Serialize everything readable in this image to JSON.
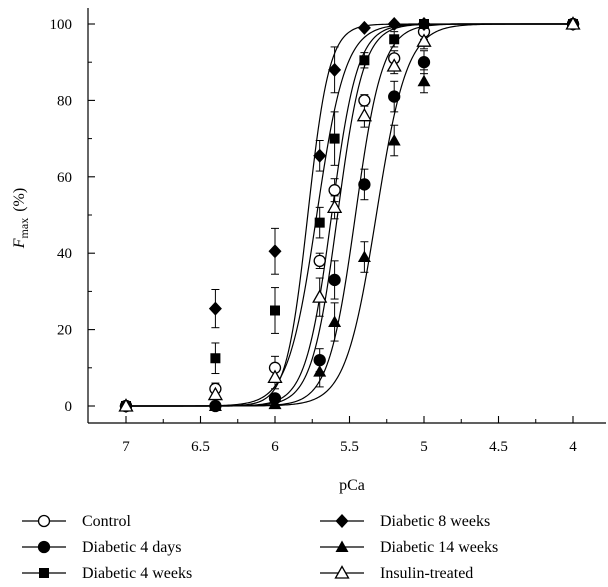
{
  "chart_data": {
    "type": "line",
    "xlabel": "pCa",
    "ylabel_main": "F",
    "ylabel_sub": "max",
    "ylabel_unit": "(%)",
    "x_reversed": true,
    "xlim": [
      7,
      4
    ],
    "ylim": [
      0,
      100
    ],
    "xticks": [
      7,
      6.5,
      6,
      5.5,
      5,
      4.5,
      4
    ],
    "xtick_labels": [
      "7",
      "6.5",
      "6",
      "5.5",
      "5",
      "4.5",
      "4"
    ],
    "yticks": [
      0,
      20,
      40,
      60,
      80,
      100
    ],
    "ytick_labels": [
      "0",
      "20",
      "40",
      "60",
      "80",
      "100"
    ],
    "grid": false,
    "legend_position": "bottom",
    "x": [
      7,
      6.4,
      6.0,
      5.7,
      5.6,
      5.4,
      5.2,
      5.0,
      4.0
    ],
    "series": [
      {
        "name": "Control",
        "marker": "circle-open",
        "values": [
          0,
          4.5,
          10,
          38,
          56.5,
          80,
          91,
          98,
          100
        ],
        "errors": [
          0,
          1.5,
          3,
          2,
          3,
          1.5,
          2,
          2,
          0
        ],
        "fit": {
          "pca50": 5.62,
          "n": 5.0
        }
      },
      {
        "name": "Diabetic 4 days",
        "marker": "circle-filled",
        "values": [
          0,
          0,
          2,
          12,
          33,
          58,
          81,
          90,
          100
        ],
        "errors": [
          0,
          0,
          1,
          3,
          5,
          4,
          4,
          3,
          0
        ],
        "fit": {
          "pca50": 5.46,
          "n": 4.8
        }
      },
      {
        "name": "Diabetic 4 weeks",
        "marker": "square-filled",
        "values": [
          0,
          12.5,
          25,
          48,
          70,
          90.5,
          96,
          100,
          100
        ],
        "errors": [
          0,
          4,
          6,
          4,
          7,
          2,
          2,
          0,
          0
        ],
        "fit": {
          "pca50": 5.72,
          "n": 4.5
        }
      },
      {
        "name": "Diabetic 8 weeks",
        "marker": "diamond-filled",
        "values": [
          0,
          25.5,
          40.5,
          65.5,
          88,
          99,
          100,
          100,
          100
        ],
        "errors": [
          0,
          5,
          6,
          4,
          6,
          0.5,
          0,
          0,
          0
        ],
        "fit": {
          "pca50": 5.78,
          "n": 6.0
        }
      },
      {
        "name": "Diabetic 14 weeks",
        "marker": "triangle-filled",
        "values": [
          0,
          0,
          0.5,
          9,
          22,
          39,
          69.5,
          85,
          100
        ],
        "errors": [
          0,
          0,
          0,
          4,
          5,
          4,
          4,
          3,
          0
        ],
        "fit": {
          "pca50": 5.32,
          "n": 4.2
        }
      },
      {
        "name": "Insulin-treated",
        "marker": "triangle-open",
        "values": [
          0,
          3,
          7.5,
          28.5,
          52,
          76,
          89,
          95.5,
          100
        ],
        "errors": [
          0,
          2,
          3,
          5,
          3,
          3,
          2,
          2,
          0
        ],
        "fit": {
          "pca50": 5.58,
          "n": 5.0
        }
      }
    ]
  }
}
